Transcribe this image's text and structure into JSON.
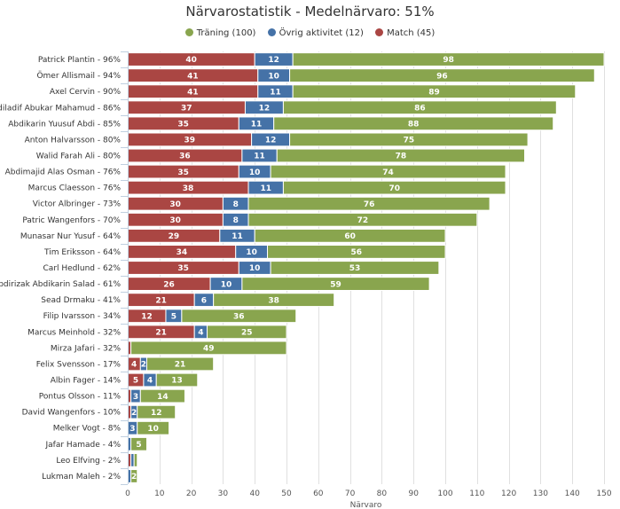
{
  "chart_data": {
    "type": "bar",
    "orientation": "horizontal",
    "stacked": true,
    "title": "Närvarostatistik - Medelnärvaro: 51%",
    "xlabel": "Närvaro",
    "ylabel": "",
    "xlim": [
      0,
      150
    ],
    "xticks": [
      0,
      10,
      20,
      30,
      40,
      50,
      60,
      70,
      80,
      90,
      100,
      110,
      120,
      130,
      140,
      150
    ],
    "grid": true,
    "legend_position": "top-center",
    "categories": [
      "Patrick Plantin - 96%",
      "Ömer Allismail - 94%",
      "Axel Cervin - 90%",
      "Abdiladif Abukar Mahamud - 86%",
      "Abdikarin Yuusuf Abdi - 85%",
      "Anton Halvarsson - 80%",
      "Walid Farah Ali - 80%",
      "Abdimajid Alas Osman - 76%",
      "Marcus Claesson - 76%",
      "Victor Albringer - 73%",
      "Patric Wangenfors - 70%",
      "Munasar Nur Yusuf - 64%",
      "Tim Eriksson - 64%",
      "Carl Hedlund - 62%",
      "Abdirizak Abdikarin Salad - 61%",
      "Sead Drmaku - 41%",
      "Filip Ivarsson - 34%",
      "Marcus Meinhold - 32%",
      "Mirza Jafari - 32%",
      "Felix Svensson - 17%",
      "Albin Fager - 14%",
      "Pontus Olsson - 11%",
      "David Wangenfors - 10%",
      "Melker Vogt - 8%",
      "Jafar Hamade - 4%",
      "Leo Elfving - 2%",
      "Lukman Maleh - 2%"
    ],
    "series": [
      {
        "name": "Match (45)",
        "color": "#aa4643",
        "values": [
          40,
          41,
          41,
          37,
          35,
          39,
          36,
          35,
          38,
          30,
          30,
          29,
          34,
          35,
          26,
          21,
          12,
          21,
          1,
          4,
          5,
          1,
          1,
          0,
          0,
          1,
          0
        ]
      },
      {
        "name": "Övrig aktivitet (12)",
        "color": "#4572a7",
        "values": [
          12,
          10,
          11,
          12,
          11,
          12,
          11,
          10,
          11,
          8,
          8,
          11,
          10,
          10,
          10,
          6,
          5,
          4,
          0,
          2,
          4,
          3,
          2,
          3,
          1,
          1,
          1
        ]
      },
      {
        "name": "Träning (100)",
        "color": "#89a54e",
        "values": [
          98,
          96,
          89,
          86,
          88,
          75,
          78,
          74,
          70,
          76,
          72,
          60,
          56,
          53,
          59,
          38,
          36,
          25,
          49,
          21,
          13,
          14,
          12,
          10,
          5,
          1,
          2
        ]
      }
    ],
    "legend_order": [
      "Träning (100)",
      "Övrig aktivitet (12)",
      "Match (45)"
    ]
  }
}
